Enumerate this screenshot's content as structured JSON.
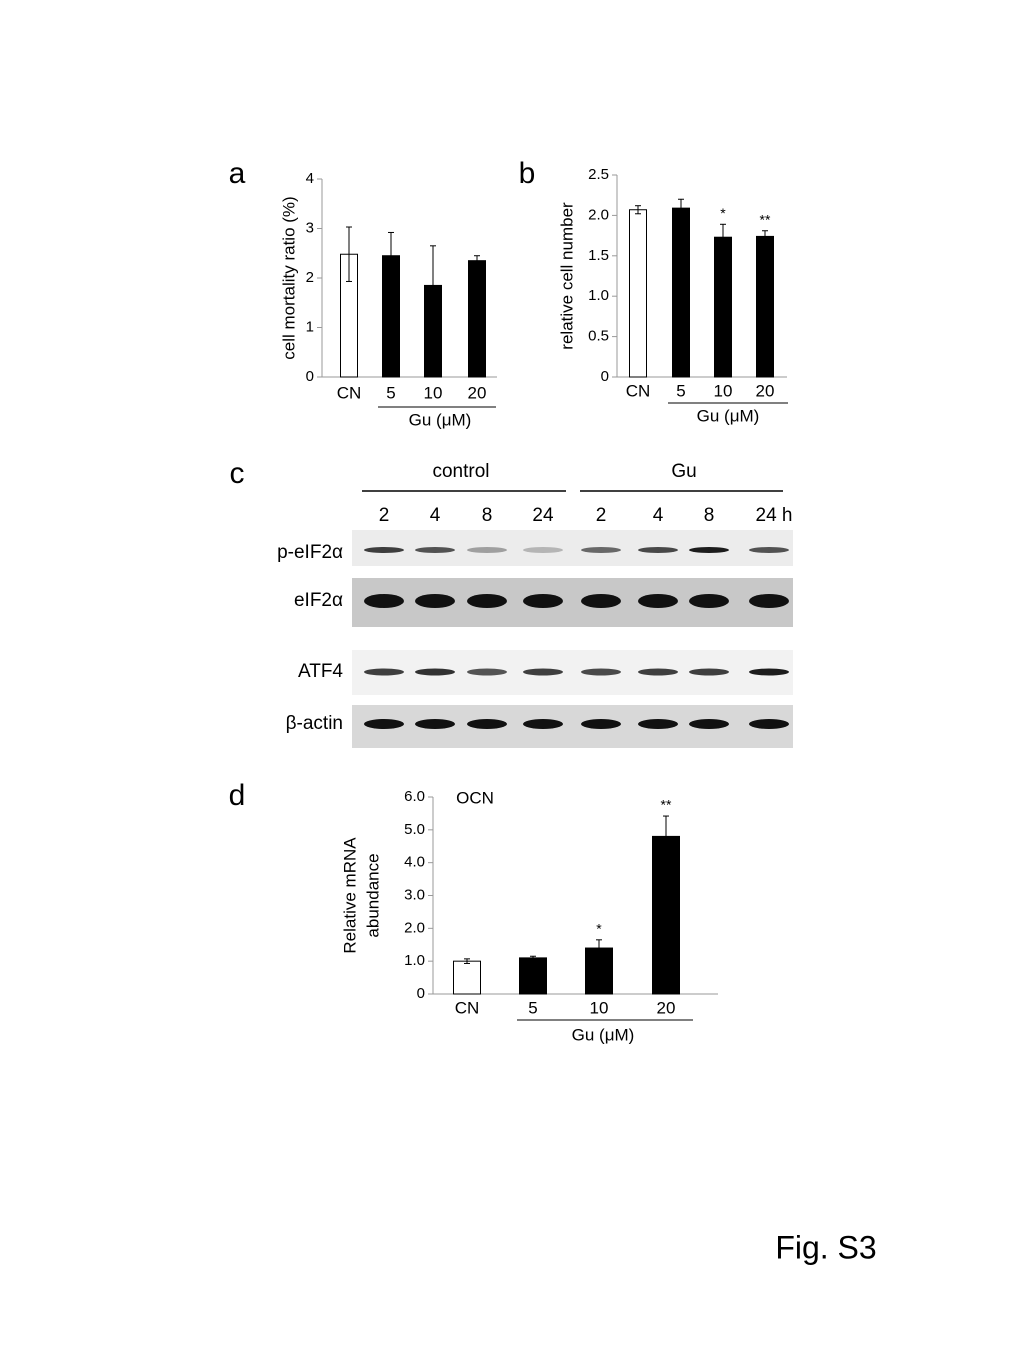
{
  "panel_labels": [
    "a",
    "b",
    "c",
    "d"
  ],
  "chart_data": [
    {
      "type": "bar",
      "ylabel": [
        "cell mortality ratio (%)"
      ],
      "categories": [
        "CN",
        "5",
        "10",
        "20"
      ],
      "group_label": "Gu (μM)",
      "values": [
        2.48,
        2.45,
        1.85,
        2.35
      ],
      "errors": [
        0.55,
        0.47,
        0.8,
        0.1
      ],
      "colors": [
        "#ffffff",
        "#000000",
        "#000000",
        "#000000"
      ],
      "ylim": [
        0,
        4
      ],
      "yticks": [
        0,
        1,
        2,
        3,
        4
      ]
    },
    {
      "type": "bar",
      "ylabel": [
        "relative cell number"
      ],
      "categories": [
        "CN",
        "5",
        "10",
        "20"
      ],
      "group_label": "Gu (μM)",
      "values": [
        2.07,
        2.09,
        1.73,
        1.74
      ],
      "errors": [
        0.05,
        0.11,
        0.16,
        0.07
      ],
      "colors": [
        "#ffffff",
        "#000000",
        "#000000",
        "#000000"
      ],
      "significance": [
        null,
        null,
        "*",
        "**"
      ],
      "ylim": [
        0,
        2.5
      ],
      "yticks": [
        0,
        0.5,
        {
          "value": 1,
          "label": "1.0"
        },
        1.5,
        {
          "value": 2,
          "label": "2.0"
        },
        2.5
      ]
    },
    {
      "type": "bar",
      "ylabel": [
        "Relative mRNA",
        "abundance"
      ],
      "inner_label": "OCN",
      "categories": [
        "CN",
        "5",
        "10",
        "20"
      ],
      "group_label": "Gu (μM)",
      "values": [
        1.0,
        1.1,
        1.4,
        4.8
      ],
      "errors": [
        0.07,
        0.05,
        0.25,
        0.62
      ],
      "colors": [
        "#ffffff",
        "#000000",
        "#000000",
        "#000000"
      ],
      "significance": [
        null,
        null,
        "*",
        "**"
      ],
      "ylim": [
        0,
        6
      ],
      "yticks": [
        0,
        {
          "value": 1,
          "label": "1.0"
        },
        {
          "value": 2,
          "label": "2.0"
        },
        {
          "value": 3,
          "label": "3.0"
        },
        {
          "value": 4,
          "label": "4.0"
        },
        {
          "value": 5,
          "label": "5.0"
        },
        {
          "value": 6,
          "label": "6.0"
        }
      ]
    }
  ],
  "blot": {
    "groups": [
      "control",
      "Gu"
    ],
    "timepoints": [
      "2",
      "4",
      "8",
      "24",
      "2",
      "4",
      "8",
      "24 h"
    ],
    "rows": [
      "p-eIF2α",
      "eIF2α",
      "ATF4",
      "β-actin"
    ]
  },
  "figure_label": "Fig. S3"
}
